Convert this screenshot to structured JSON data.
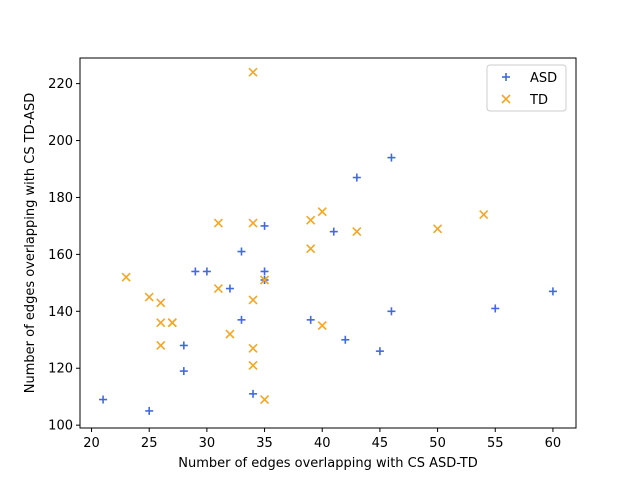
{
  "chart_data": {
    "type": "scatter",
    "xlabel": "Number of edges overlapping with CS ASD-TD",
    "ylabel": "Number of edges overlapping with CS TD-ASD",
    "xlim": [
      19,
      62
    ],
    "ylim": [
      99,
      229
    ],
    "x_ticks": [
      20,
      25,
      30,
      35,
      40,
      45,
      50,
      55,
      60
    ],
    "y_ticks": [
      100,
      120,
      140,
      160,
      180,
      200,
      220
    ],
    "grid": false,
    "legend_position": "top-right",
    "series": [
      {
        "name": "ASD",
        "marker": "plus",
        "color": "#4169e1",
        "points": [
          [
            21,
            109
          ],
          [
            25,
            105
          ],
          [
            28,
            119
          ],
          [
            28,
            128
          ],
          [
            29,
            154
          ],
          [
            30,
            154
          ],
          [
            32,
            148
          ],
          [
            33,
            161
          ],
          [
            33,
            137
          ],
          [
            34,
            111
          ],
          [
            35,
            170
          ],
          [
            35,
            154
          ],
          [
            35,
            151
          ],
          [
            39,
            137
          ],
          [
            41,
            168
          ],
          [
            42,
            130
          ],
          [
            43,
            187
          ],
          [
            45,
            126
          ],
          [
            46,
            194
          ],
          [
            46,
            140
          ],
          [
            55,
            141
          ],
          [
            60,
            147
          ]
        ]
      },
      {
        "name": "TD",
        "marker": "x",
        "color": "#f5a623",
        "points": [
          [
            23,
            152
          ],
          [
            25,
            145
          ],
          [
            26,
            143
          ],
          [
            26,
            136
          ],
          [
            26,
            128
          ],
          [
            27,
            136
          ],
          [
            27,
            136
          ],
          [
            31,
            171
          ],
          [
            31,
            148
          ],
          [
            32,
            132
          ],
          [
            34,
            224
          ],
          [
            34,
            171
          ],
          [
            34,
            144
          ],
          [
            34,
            127
          ],
          [
            34,
            121
          ],
          [
            35,
            151
          ],
          [
            35,
            109
          ],
          [
            39,
            172
          ],
          [
            39,
            162
          ],
          [
            40,
            175
          ],
          [
            40,
            135
          ],
          [
            43,
            168
          ],
          [
            50,
            169
          ],
          [
            54,
            174
          ]
        ]
      }
    ]
  }
}
